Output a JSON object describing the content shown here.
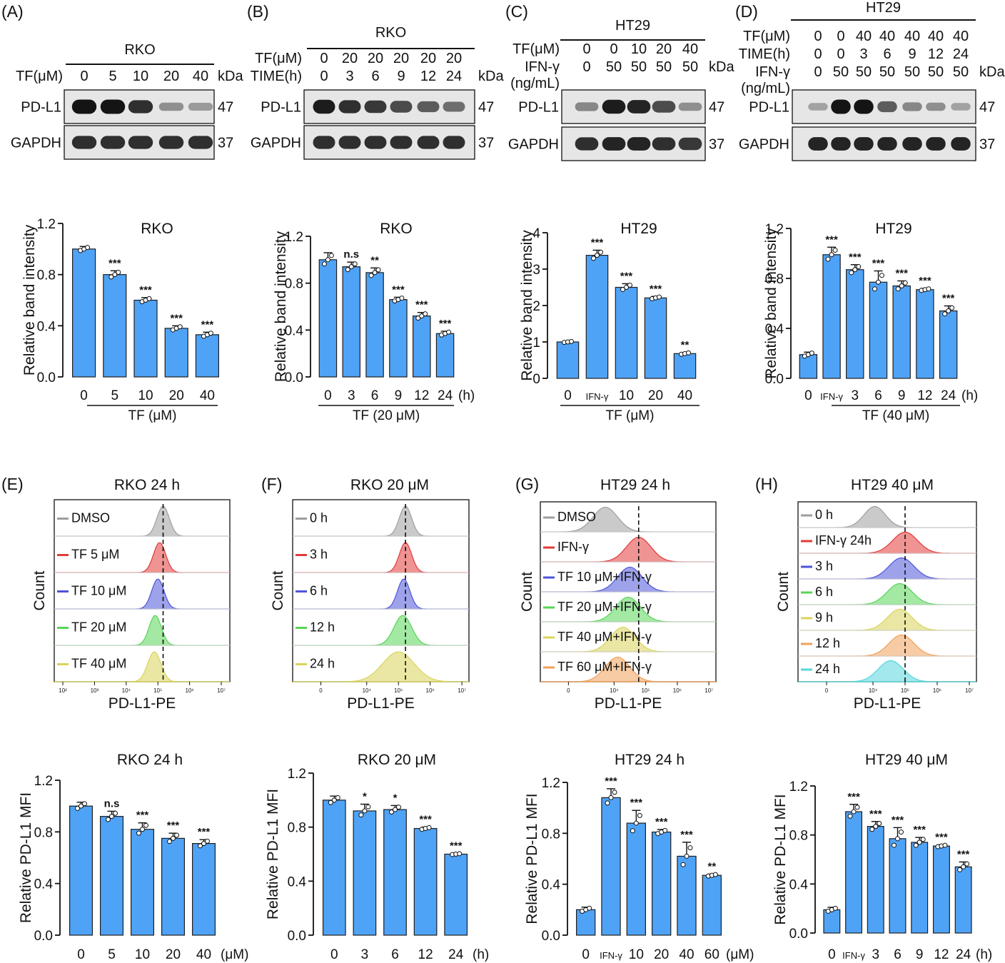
{
  "colors": {
    "bar": "#4fa3f7",
    "bar_edge": "#1f1f1f",
    "blot_bg": "#e6e6e6",
    "band": "#141414"
  },
  "panel_labels": [
    "(A)",
    "(B)",
    "(C)",
    "(D)",
    "(E)",
    "(F)",
    "(G)",
    "(H)"
  ],
  "blots": {
    "A": {
      "cell": "RKO",
      "rows": [
        {
          "label": "TF(μM)",
          "values": [
            "0",
            "5",
            "10",
            "20",
            "40"
          ]
        }
      ],
      "kda": "kDa",
      "bands": [
        {
          "name": "PD-L1",
          "kda": "47",
          "intensity": [
            1.0,
            1.0,
            0.85,
            0.3,
            0.25
          ]
        },
        {
          "name": "GAPDH",
          "kda": "37",
          "intensity": [
            0.85,
            0.85,
            0.85,
            0.85,
            0.85
          ]
        }
      ]
    },
    "B": {
      "cell": "RKO",
      "rows": [
        {
          "label": "TF(μM)",
          "values": [
            "0",
            "20",
            "20",
            "20",
            "20",
            "20"
          ]
        },
        {
          "label": "TIME(h)",
          "values": [
            "0",
            "3",
            "6",
            "9",
            "12",
            "24"
          ]
        }
      ],
      "kda": "kDa",
      "bands": [
        {
          "name": "PD-L1",
          "kda": "47",
          "intensity": [
            0.95,
            0.85,
            0.8,
            0.7,
            0.6,
            0.5
          ]
        },
        {
          "name": "GAPDH",
          "kda": "37",
          "intensity": [
            0.85,
            0.85,
            0.85,
            0.85,
            0.85,
            0.85
          ]
        }
      ]
    },
    "C": {
      "cell": "HT29",
      "rows": [
        {
          "label": "TF(μM)",
          "values": [
            "0",
            "0",
            "10",
            "20",
            "40"
          ]
        },
        {
          "label": "IFN-γ",
          "values": [
            "0",
            "50",
            "50",
            "50",
            "50"
          ]
        }
      ],
      "row_extra": "(ng/mL)",
      "kda": "kDa",
      "bands": [
        {
          "name": "PD-L1",
          "kda": "47",
          "intensity": [
            0.35,
            0.95,
            0.9,
            0.7,
            0.3
          ]
        },
        {
          "name": "GAPDH",
          "kda": "37",
          "intensity": [
            0.85,
            0.9,
            0.9,
            0.85,
            0.8
          ]
        }
      ]
    },
    "D": {
      "cell": "HT29",
      "rows": [
        {
          "label": "TF(μM)",
          "values": [
            "0",
            "0",
            "40",
            "40",
            "40",
            "40",
            "40"
          ]
        },
        {
          "label": "TIME(h)",
          "values": [
            "0",
            "0",
            "3",
            "6",
            "9",
            "12",
            "24"
          ]
        },
        {
          "label": "IFN-γ",
          "values": [
            "0",
            "50",
            "50",
            "50",
            "50",
            "50",
            "50"
          ]
        }
      ],
      "row_extra": "(ng/mL)",
      "kda": "kDa",
      "bands": [
        {
          "name": "PD-L1",
          "kda": "47",
          "intensity": [
            0.2,
            1.0,
            1.0,
            0.6,
            0.35,
            0.3,
            0.2
          ]
        },
        {
          "name": "GAPDH",
          "kda": "37",
          "intensity": [
            0.9,
            0.9,
            0.9,
            0.9,
            0.9,
            0.9,
            0.9
          ]
        }
      ]
    }
  },
  "chart_data": [
    {
      "id": "A",
      "type": "bar",
      "title": "RKO",
      "ylabel": "Relative band intensity",
      "ylim": [
        0,
        1.2
      ],
      "yticks": [
        "0.0",
        "0.4",
        "0.8",
        "1.2"
      ],
      "categories": [
        "0",
        "5",
        "10",
        "20",
        "40"
      ],
      "values": [
        1.0,
        0.8,
        0.6,
        0.38,
        0.33
      ],
      "errors": [
        0.02,
        0.03,
        0.02,
        0.02,
        0.02
      ],
      "significance": [
        "",
        "***",
        "***",
        "***",
        "***"
      ],
      "unit": "",
      "group_label": "TF (μM)"
    },
    {
      "id": "B",
      "type": "bar",
      "title": "RKO",
      "ylabel": "Relative band intensity",
      "ylim": [
        0,
        1.2
      ],
      "yticks": [
        "0.0",
        "0.4",
        "0.8",
        "1.2"
      ],
      "categories": [
        "0",
        "3",
        "6",
        "9",
        "12",
        "24"
      ],
      "values": [
        1.0,
        0.94,
        0.89,
        0.66,
        0.52,
        0.37
      ],
      "errors": [
        0.06,
        0.04,
        0.04,
        0.02,
        0.03,
        0.02
      ],
      "significance": [
        "",
        "n.s",
        "**",
        "***",
        "***",
        "***"
      ],
      "unit": "(h)",
      "group_label": "TF (20 μM)"
    },
    {
      "id": "C",
      "type": "bar",
      "title": "HT29",
      "ylabel": "Relative band intensity",
      "ylim": [
        0,
        4
      ],
      "yticks": [
        "0",
        "1",
        "2",
        "3",
        "4"
      ],
      "categories": [
        "0",
        "IFN-γ",
        "10",
        "20",
        "40"
      ],
      "values": [
        1.0,
        3.38,
        2.5,
        2.21,
        0.68
      ],
      "errors": [
        0.02,
        0.14,
        0.1,
        0.04,
        0.03
      ],
      "significance": [
        "",
        "***",
        "***",
        "***",
        "**"
      ],
      "unit": "",
      "group_label": "TF (μM)"
    },
    {
      "id": "D",
      "type": "bar",
      "title": "HT29",
      "ylabel": "Relative band intensity",
      "ylim": [
        0,
        1.2
      ],
      "yticks": [
        "0.0",
        "0.4",
        "0.8",
        "1.2"
      ],
      "categories": [
        "0",
        "IFN-γ",
        "3",
        "6",
        "9",
        "12",
        "24"
      ],
      "values": [
        0.19,
        0.99,
        0.87,
        0.77,
        0.74,
        0.71,
        0.54
      ],
      "errors": [
        0.02,
        0.06,
        0.04,
        0.09,
        0.04,
        0.01,
        0.04
      ],
      "significance": [
        "",
        "***",
        "***",
        "***",
        "***",
        "***",
        "***"
      ],
      "unit": "(h)",
      "group_label": "TF (40 μM)"
    },
    {
      "id": "E2",
      "type": "bar",
      "title": "RKO 24 h",
      "ylabel": "Relative PD-L1 MFI",
      "ylim": [
        0,
        1.2
      ],
      "yticks": [
        "0.0",
        "0.4",
        "0.8",
        "1.2"
      ],
      "categories": [
        "0",
        "5",
        "10",
        "20",
        "40"
      ],
      "values": [
        1.0,
        0.92,
        0.82,
        0.75,
        0.71
      ],
      "errors": [
        0.03,
        0.04,
        0.05,
        0.04,
        0.03
      ],
      "significance": [
        "",
        "n.s",
        "***",
        "***",
        "***"
      ],
      "unit": "(μM)"
    },
    {
      "id": "F2",
      "type": "bar",
      "title": "RKO 20 μM",
      "ylabel": "Relative PD-L1 MFI",
      "ylim": [
        0,
        1.2
      ],
      "yticks": [
        "0.0",
        "0.4",
        "0.8",
        "1.2"
      ],
      "categories": [
        "0",
        "3",
        "6",
        "12",
        "24"
      ],
      "values": [
        1.0,
        0.92,
        0.93,
        0.79,
        0.6
      ],
      "errors": [
        0.03,
        0.05,
        0.03,
        0.01,
        0.005
      ],
      "significance": [
        "",
        "*",
        "*",
        "***",
        "***"
      ],
      "unit": "(h)"
    },
    {
      "id": "G2",
      "type": "bar",
      "title": "HT29 24 h",
      "ylabel": "Relative PD-L1 MFI",
      "ylim": [
        0,
        1.2
      ],
      "yticks": [
        "0.0",
        "0.4",
        "0.8",
        "1.2"
      ],
      "categories": [
        "0",
        "IFN-γ",
        "10",
        "20",
        "40",
        "60"
      ],
      "values": [
        0.2,
        1.08,
        0.88,
        0.81,
        0.62,
        0.47
      ],
      "errors": [
        0.02,
        0.07,
        0.1,
        0.02,
        0.11,
        0.01
      ],
      "significance": [
        "",
        "***",
        "***",
        "***",
        "***",
        "**"
      ],
      "unit": "(μM)"
    },
    {
      "id": "H2",
      "type": "bar",
      "title": "HT29 40 μM",
      "ylabel": "Relative PD-L1 MFI",
      "ylim": [
        0,
        1.2
      ],
      "yticks": [
        "0.0",
        "0.4",
        "0.8",
        "1.2"
      ],
      "categories": [
        "0",
        "IFN-γ",
        "3",
        "6",
        "9",
        "12",
        "24"
      ],
      "values": [
        0.19,
        0.99,
        0.87,
        0.77,
        0.74,
        0.71,
        0.54
      ],
      "errors": [
        0.02,
        0.06,
        0.04,
        0.09,
        0.04,
        0.01,
        0.04
      ],
      "significance": [
        "",
        "***",
        "***",
        "***",
        "***",
        "***",
        "***"
      ],
      "unit": "(h)"
    }
  ],
  "flow": [
    {
      "id": "E",
      "title": "RKO 24 h",
      "ylabel": "Count",
      "xlabel": "PD-L1-PE",
      "axis": "decade",
      "ticks": [
        "10²",
        "10³",
        "10⁴",
        "10⁵",
        "10⁶",
        "10⁷"
      ],
      "tracks": [
        {
          "label": "DMSO",
          "color": "#9e9e9e",
          "center": 0.62,
          "width": 0.035
        },
        {
          "label": "TF  5 μM",
          "color": "#e23a3a",
          "center": 0.6,
          "width": 0.035
        },
        {
          "label": "TF 10 μM",
          "color": "#4e55d8",
          "center": 0.59,
          "width": 0.035
        },
        {
          "label": "TF 20 μM",
          "color": "#57d557",
          "center": 0.575,
          "width": 0.035
        },
        {
          "label": "TF 40 μM",
          "color": "#d9d45a",
          "center": 0.57,
          "width": 0.038
        }
      ]
    },
    {
      "id": "F",
      "title": "RKO 20 μM",
      "ylabel": "Count",
      "xlabel": "PD-L1-PE",
      "axis": "zero",
      "ticks": [
        "0",
        "10⁴",
        "10⁵",
        "10⁶",
        "10⁷"
      ],
      "tracks": [
        {
          "label": "0 h",
          "color": "#9e9e9e",
          "center": 0.64,
          "width": 0.035
        },
        {
          "label": "3 h",
          "color": "#e23a3a",
          "center": 0.64,
          "width": 0.035
        },
        {
          "label": "6 h",
          "color": "#4e55d8",
          "center": 0.63,
          "width": 0.035
        },
        {
          "label": "12 h",
          "color": "#57d557",
          "center": 0.625,
          "width": 0.05
        },
        {
          "label": "24 h",
          "color": "#d9d45a",
          "center": 0.6,
          "width": 0.09
        }
      ]
    },
    {
      "id": "G",
      "title": "HT29 24 h",
      "ylabel": "Count",
      "xlabel": "PD-L1-PE",
      "axis": "zero",
      "ticks": [
        "0",
        "10⁴",
        "10⁵",
        "10⁶",
        "10⁷"
      ],
      "tracks": [
        {
          "label": "DMSO",
          "color": "#9e9e9e",
          "center": 0.37,
          "width": 0.07
        },
        {
          "label": "IFN-γ",
          "color": "#e23a3a",
          "center": 0.56,
          "width": 0.07
        },
        {
          "label": "TF 10 μM+IFN-γ",
          "color": "#4e55d8",
          "center": 0.51,
          "width": 0.07
        },
        {
          "label": "TF 20 μM+IFN-γ",
          "color": "#57d557",
          "center": 0.5,
          "width": 0.07
        },
        {
          "label": "TF 40 μM+IFN-γ",
          "color": "#d9d45a",
          "center": 0.47,
          "width": 0.07
        },
        {
          "label": "TF 60 μM+IFN-γ",
          "color": "#f0a15a",
          "center": 0.44,
          "width": 0.07
        }
      ]
    },
    {
      "id": "H",
      "title": "HT29 40 μM",
      "ylabel": "Count",
      "xlabel": "PD-L1-PE",
      "axis": "zero",
      "ticks": [
        "0",
        "10⁴",
        "10⁵",
        "10⁶",
        "10⁷"
      ],
      "tracks": [
        {
          "label": "0 h",
          "color": "#9e9e9e",
          "center": 0.43,
          "width": 0.06
        },
        {
          "label": "IFN-γ 24h",
          "color": "#e23a3a",
          "center": 0.6,
          "width": 0.07
        },
        {
          "label": "3 h",
          "color": "#4e55d8",
          "center": 0.58,
          "width": 0.07
        },
        {
          "label": "6 h",
          "color": "#57d557",
          "center": 0.57,
          "width": 0.07
        },
        {
          "label": "9 h",
          "color": "#d9d45a",
          "center": 0.57,
          "width": 0.07
        },
        {
          "label": "12 h",
          "color": "#f0a15a",
          "center": 0.58,
          "width": 0.07
        },
        {
          "label": "24 h",
          "color": "#55d6dc",
          "center": 0.52,
          "width": 0.07
        }
      ]
    }
  ]
}
